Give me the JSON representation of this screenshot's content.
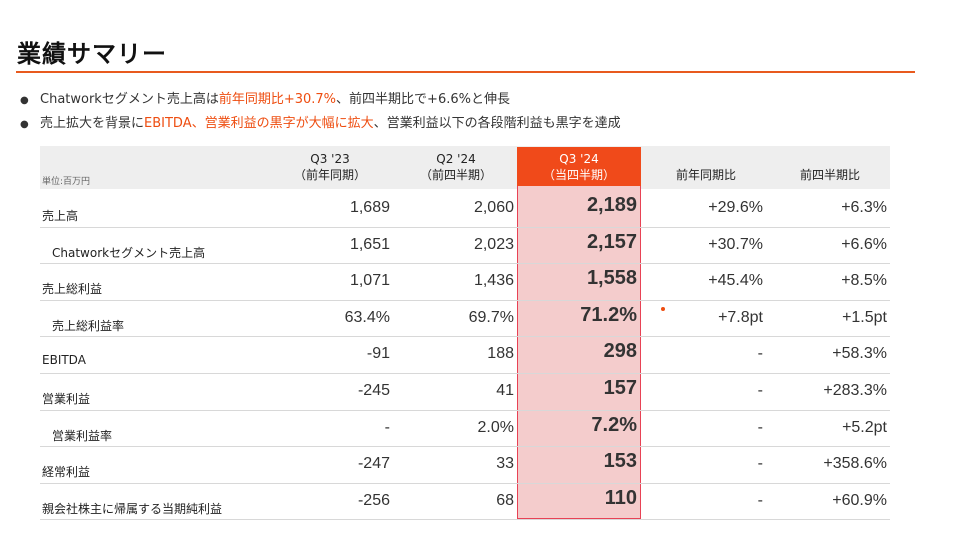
{
  "title": "業績サマリー",
  "bullets": [
    {
      "pre": "Chatworkセグメント売上高は",
      "hl": "前年同期比+30.7%",
      "post": "、前四半期比で+6.6%と伸長"
    },
    {
      "pre": "売上拡大を背景に",
      "hl": "EBITDA、営業利益の黒字が大幅に拡大",
      "post": "、営業利益以下の各段階利益も黒字を達成"
    }
  ],
  "table": {
    "unit": "単位:百万円",
    "headers": [
      {
        "line1": "Q3 '23",
        "line2": "（前年同期）"
      },
      {
        "line1": "Q2 '24",
        "line2": "（前四半期）"
      },
      {
        "line1": "Q3 '24",
        "line2": "（当四半期）"
      },
      {
        "line1": "",
        "line2": "前年同期比"
      },
      {
        "line1": "",
        "line2": "前四半期比"
      }
    ],
    "rows": [
      {
        "label": "売上高",
        "indent": false,
        "values": [
          "1,689",
          "2,060",
          "2,189",
          "+29.6%",
          "+6.3%"
        ]
      },
      {
        "label": "Chatworkセグメント売上高",
        "indent": true,
        "values": [
          "1,651",
          "2,023",
          "2,157",
          "+30.7%",
          "+6.6%"
        ]
      },
      {
        "label": "売上総利益",
        "indent": false,
        "values": [
          "1,071",
          "1,436",
          "1,558",
          "+45.4%",
          "+8.5%"
        ]
      },
      {
        "label": "売上総利益率",
        "indent": true,
        "values": [
          "63.4%",
          "69.7%",
          "71.2%",
          "+7.8pt",
          "+1.5pt"
        ]
      },
      {
        "label": "EBITDA",
        "indent": false,
        "values": [
          "-91",
          "188",
          "298",
          "-",
          "+58.3%"
        ]
      },
      {
        "label": "営業利益",
        "indent": false,
        "values": [
          "-245",
          "41",
          "157",
          "-",
          "+283.3%"
        ]
      },
      {
        "label": "営業利益率",
        "indent": true,
        "values": [
          "-",
          "2.0%",
          "7.2%",
          "-",
          "+5.2pt"
        ]
      },
      {
        "label": "経常利益",
        "indent": false,
        "values": [
          "-247",
          "33",
          "153",
          "-",
          "+358.6%"
        ]
      },
      {
        "label": "親会社株主に帰属する当期純利益",
        "indent": false,
        "values": [
          "-256",
          "68",
          "110",
          "-",
          "+60.9%"
        ]
      }
    ]
  },
  "colors": {
    "accent": "#ee4d10",
    "highlight_col": "#f4cccc",
    "highlight_header": "#f04a1a"
  }
}
